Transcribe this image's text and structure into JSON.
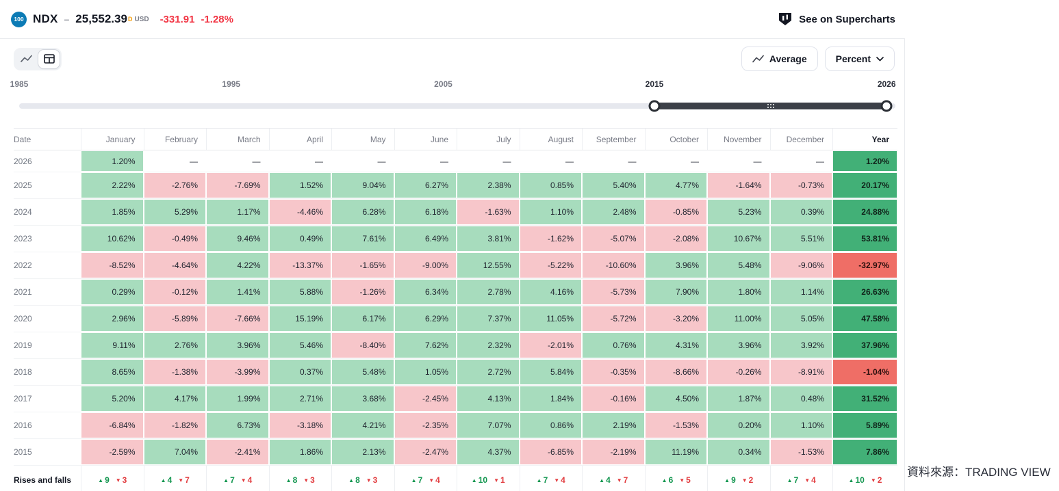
{
  "header": {
    "logo_text": "100",
    "symbol": "NDX",
    "price": "25,552.39",
    "data_flag": "D",
    "currency": "USD",
    "change": "-331.91",
    "change_pct": "-1.28%",
    "supercharts_link": "See on Supercharts"
  },
  "toolbar": {
    "average_label": "Average",
    "percent_label": "Percent"
  },
  "slider": {
    "labels": [
      "1985",
      "1995",
      "2005",
      "2015",
      "2026"
    ],
    "selected_range": [
      "2015",
      "2026"
    ]
  },
  "table": {
    "columns": [
      "Date",
      "January",
      "February",
      "March",
      "April",
      "May",
      "June",
      "July",
      "August",
      "September",
      "October",
      "November",
      "December",
      "Year"
    ],
    "rows": [
      {
        "year": "2026",
        "months": [
          "1.20%",
          "—",
          "—",
          "—",
          "—",
          "—",
          "—",
          "—",
          "—",
          "—",
          "—",
          "—"
        ],
        "year_total": "1.20%"
      },
      {
        "year": "2025",
        "months": [
          "2.22%",
          "-2.76%",
          "-7.69%",
          "1.52%",
          "9.04%",
          "6.27%",
          "2.38%",
          "0.85%",
          "5.40%",
          "4.77%",
          "-1.64%",
          "-0.73%"
        ],
        "year_total": "20.17%"
      },
      {
        "year": "2024",
        "months": [
          "1.85%",
          "5.29%",
          "1.17%",
          "-4.46%",
          "6.28%",
          "6.18%",
          "-1.63%",
          "1.10%",
          "2.48%",
          "-0.85%",
          "5.23%",
          "0.39%"
        ],
        "year_total": "24.88%"
      },
      {
        "year": "2023",
        "months": [
          "10.62%",
          "-0.49%",
          "9.46%",
          "0.49%",
          "7.61%",
          "6.49%",
          "3.81%",
          "-1.62%",
          "-5.07%",
          "-2.08%",
          "10.67%",
          "5.51%"
        ],
        "year_total": "53.81%"
      },
      {
        "year": "2022",
        "months": [
          "-8.52%",
          "-4.64%",
          "4.22%",
          "-13.37%",
          "-1.65%",
          "-9.00%",
          "12.55%",
          "-5.22%",
          "-10.60%",
          "3.96%",
          "5.48%",
          "-9.06%"
        ],
        "year_total": "-32.97%"
      },
      {
        "year": "2021",
        "months": [
          "0.29%",
          "-0.12%",
          "1.41%",
          "5.88%",
          "-1.26%",
          "6.34%",
          "2.78%",
          "4.16%",
          "-5.73%",
          "7.90%",
          "1.80%",
          "1.14%"
        ],
        "year_total": "26.63%"
      },
      {
        "year": "2020",
        "months": [
          "2.96%",
          "-5.89%",
          "-7.66%",
          "15.19%",
          "6.17%",
          "6.29%",
          "7.37%",
          "11.05%",
          "-5.72%",
          "-3.20%",
          "11.00%",
          "5.05%"
        ],
        "year_total": "47.58%"
      },
      {
        "year": "2019",
        "months": [
          "9.11%",
          "2.76%",
          "3.96%",
          "5.46%",
          "-8.40%",
          "7.62%",
          "2.32%",
          "-2.01%",
          "0.76%",
          "4.31%",
          "3.96%",
          "3.92%"
        ],
        "year_total": "37.96%"
      },
      {
        "year": "2018",
        "months": [
          "8.65%",
          "-1.38%",
          "-3.99%",
          "0.37%",
          "5.48%",
          "1.05%",
          "2.72%",
          "5.84%",
          "-0.35%",
          "-8.66%",
          "-0.26%",
          "-8.91%"
        ],
        "year_total": "-1.04%"
      },
      {
        "year": "2017",
        "months": [
          "5.20%",
          "4.17%",
          "1.99%",
          "2.71%",
          "3.68%",
          "-2.45%",
          "4.13%",
          "1.84%",
          "-0.16%",
          "4.50%",
          "1.87%",
          "0.48%"
        ],
        "year_total": "31.52%"
      },
      {
        "year": "2016",
        "months": [
          "-6.84%",
          "-1.82%",
          "6.73%",
          "-3.18%",
          "4.21%",
          "-2.35%",
          "7.07%",
          "0.86%",
          "2.19%",
          "-1.53%",
          "0.20%",
          "1.10%"
        ],
        "year_total": "5.89%"
      },
      {
        "year": "2015",
        "months": [
          "-2.59%",
          "7.04%",
          "-2.41%",
          "1.86%",
          "2.13%",
          "-2.47%",
          "4.37%",
          "-6.85%",
          "-2.19%",
          "11.19%",
          "0.34%",
          "-1.53%"
        ],
        "year_total": "7.86%"
      }
    ],
    "rises_and_falls": {
      "label": "Rises and falls",
      "months": [
        {
          "up": "9",
          "down": "3"
        },
        {
          "up": "4",
          "down": "7"
        },
        {
          "up": "7",
          "down": "4"
        },
        {
          "up": "8",
          "down": "3"
        },
        {
          "up": "8",
          "down": "3"
        },
        {
          "up": "7",
          "down": "4"
        },
        {
          "up": "10",
          "down": "1"
        },
        {
          "up": "7",
          "down": "4"
        },
        {
          "up": "4",
          "down": "7"
        },
        {
          "up": "6",
          "down": "5"
        },
        {
          "up": "9",
          "down": "2"
        },
        {
          "up": "7",
          "down": "4"
        }
      ],
      "year": {
        "up": "10",
        "down": "2"
      }
    }
  },
  "source_note": "資料來源：TRADING VIEW",
  "colors": {
    "positive_cell": "#a7dcbd",
    "negative_cell": "#f7c6ca",
    "year_positive": "#42b077",
    "year_negative": "#ef6e66",
    "up_text": "#12964f",
    "down_text": "#e23c3f",
    "quote_red": "#f23645",
    "logo_blue": "#0c7bb5",
    "slider_selected": "#3c4048"
  }
}
